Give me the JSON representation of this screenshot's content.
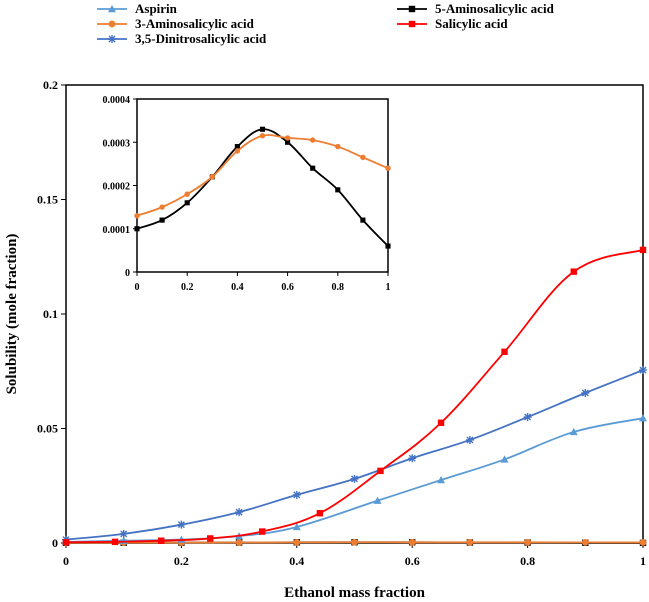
{
  "chart_data": {
    "type": "line",
    "title": "",
    "xlabel": "Ethanol mass fraction",
    "ylabel": "Solubility (mole fraction)",
    "xlim": [
      0,
      1
    ],
    "ylim": [
      0,
      0.2
    ],
    "xticks": [
      "0",
      "0.2",
      "0.4",
      "0.6",
      "0.8",
      "1"
    ],
    "yticks": [
      "0",
      "0.05",
      "0.1",
      "0.15",
      "0.2"
    ],
    "legend_position": "top",
    "series": [
      {
        "name": "Aspirin",
        "color": "#5b9bd5",
        "marker": "triangle",
        "x": [
          0,
          0.1,
          0.2,
          0.3,
          0.4,
          0.54,
          0.65,
          0.76,
          0.88,
          1.0
        ],
        "y": [
          0.0005,
          0.001,
          0.0015,
          0.003,
          0.007,
          0.0185,
          0.0275,
          0.0365,
          0.0485,
          0.0545
        ]
      },
      {
        "name": "5-Aminosalicylic acid",
        "color": "#000000",
        "marker": "square",
        "x": [
          0,
          0.1,
          0.2,
          0.3,
          0.4,
          0.5,
          0.6,
          0.7,
          0.8,
          0.9,
          1.0
        ],
        "y": [
          0.0001,
          0.00012,
          0.00016,
          0.00022,
          0.00029,
          0.00033,
          0.0003,
          0.00024,
          0.00019,
          0.00012,
          6e-05
        ]
      },
      {
        "name": "3-Aminosalicylic acid",
        "color": "#ed7d31",
        "marker": "circle",
        "x": [
          0,
          0.1,
          0.2,
          0.3,
          0.4,
          0.5,
          0.6,
          0.7,
          0.8,
          0.9,
          1.0
        ],
        "y": [
          0.00013,
          0.00015,
          0.00018,
          0.00022,
          0.00028,
          0.000315,
          0.00031,
          0.000305,
          0.00029,
          0.000265,
          0.00024
        ]
      },
      {
        "name": "Salicylic acid",
        "color": "#ff0000",
        "marker": "square",
        "x": [
          0,
          0.085,
          0.165,
          0.25,
          0.34,
          0.44,
          0.545,
          0.65,
          0.76,
          0.88,
          1.0
        ],
        "y": [
          0.0003,
          0.0005,
          0.001,
          0.002,
          0.005,
          0.013,
          0.0315,
          0.0525,
          0.0835,
          0.1185,
          0.128
        ]
      },
      {
        "name": "3,5-Dinitrosalicylic acid",
        "color": "#4472c4",
        "marker": "star",
        "x": [
          0,
          0.1,
          0.2,
          0.3,
          0.4,
          0.5,
          0.6,
          0.7,
          0.8,
          0.9,
          1.0
        ],
        "y": [
          0.0015,
          0.004,
          0.008,
          0.0135,
          0.021,
          0.028,
          0.037,
          0.045,
          0.055,
          0.0655,
          0.0755
        ]
      }
    ],
    "inset": {
      "type": "line",
      "xlim": [
        0,
        1
      ],
      "ylim": [
        0,
        0.0004
      ],
      "xticks": [
        "0",
        "0.2",
        "0.4",
        "0.6",
        "0.8",
        "1"
      ],
      "yticks": [
        "0",
        "0.0001",
        "0.0002",
        "0.0003",
        "0.0004"
      ],
      "series_names": [
        "5-Aminosalicylic acid",
        "3-Aminosalicylic acid"
      ]
    }
  }
}
